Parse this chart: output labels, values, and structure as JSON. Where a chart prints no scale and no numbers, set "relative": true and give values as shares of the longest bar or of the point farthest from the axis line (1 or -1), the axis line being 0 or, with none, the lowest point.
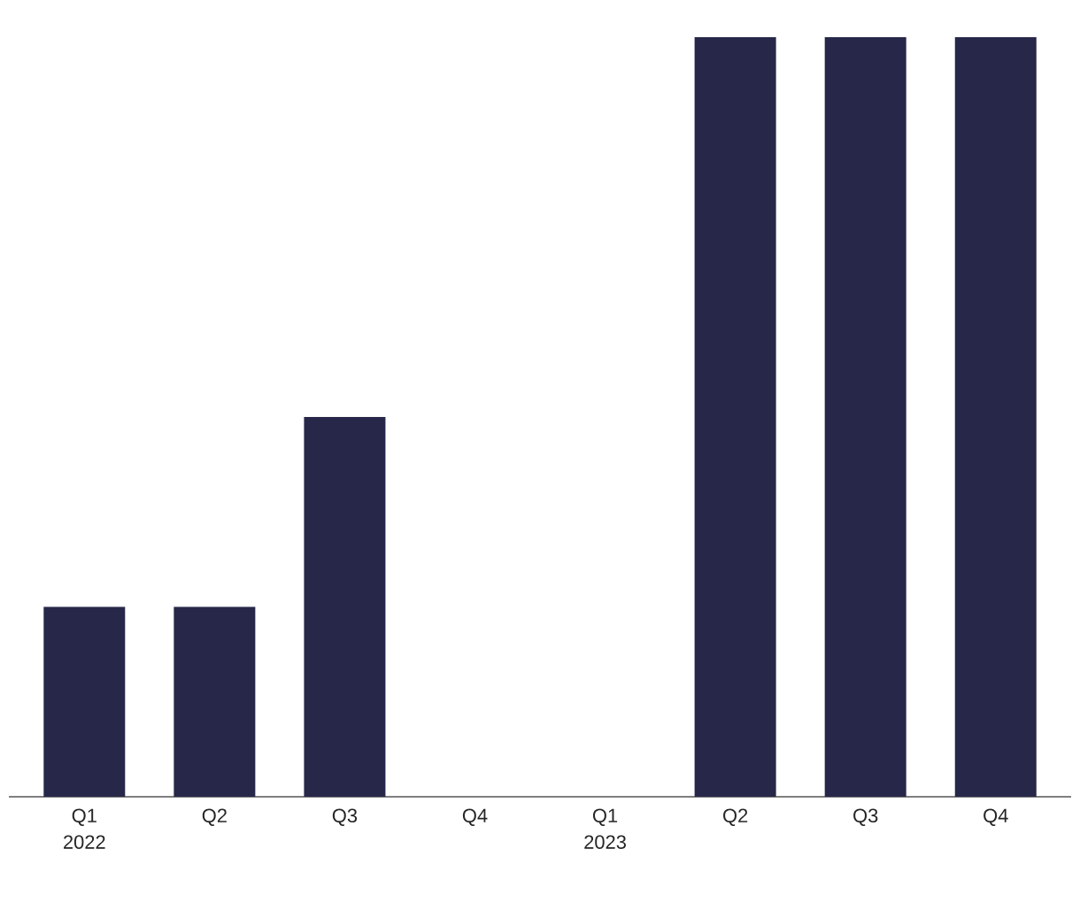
{
  "chart_data": {
    "type": "bar",
    "relative": true,
    "color": "#272749",
    "categories": [
      "Q1 2022",
      "Q2",
      "Q3",
      "Q4",
      "Q1 2023",
      "Q2",
      "Q3",
      "Q4"
    ],
    "values": [
      0.25,
      0.25,
      0.5,
      0,
      0,
      1,
      1,
      1
    ]
  }
}
